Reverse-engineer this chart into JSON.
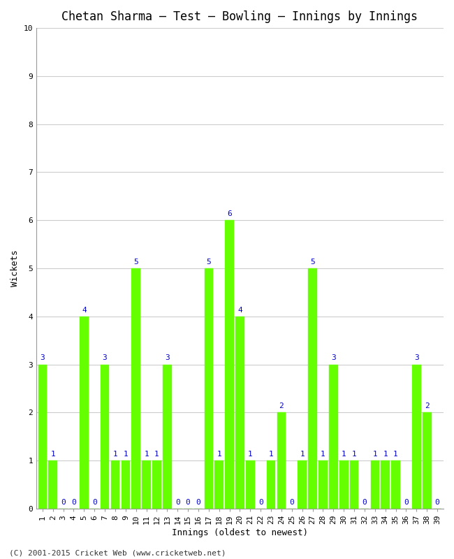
{
  "title": "Chetan Sharma – Test – Bowling – Innings by Innings",
  "xlabel": "Innings (oldest to newest)",
  "ylabel": "Wickets",
  "footer": "(C) 2001-2015 Cricket Web (www.cricketweb.net)",
  "ylim": [
    0,
    10
  ],
  "yticks": [
    0,
    1,
    2,
    3,
    4,
    5,
    6,
    7,
    8,
    9,
    10
  ],
  "bar_color": "#66ff00",
  "bar_edge_color": "#66ff00",
  "label_color": "#0000cc",
  "innings": [
    1,
    2,
    3,
    4,
    5,
    6,
    7,
    8,
    9,
    10,
    11,
    12,
    13,
    14,
    15,
    16,
    17,
    18,
    19,
    20,
    21,
    22,
    23,
    24,
    25,
    26,
    27,
    28,
    29,
    30,
    31,
    32,
    33,
    34,
    35,
    36,
    37,
    38,
    39
  ],
  "wickets": [
    3,
    1,
    0,
    0,
    4,
    0,
    3,
    1,
    1,
    5,
    1,
    1,
    3,
    0,
    0,
    0,
    5,
    1,
    6,
    4,
    1,
    0,
    1,
    2,
    0,
    1,
    5,
    1,
    3,
    1,
    1,
    0,
    1,
    1,
    1,
    0,
    3,
    2,
    0
  ],
  "background_color": "#ffffff",
  "grid_color": "#cccccc",
  "title_fontsize": 12,
  "label_fontsize": 9,
  "tick_fontsize": 8,
  "annot_fontsize": 8,
  "footer_fontsize": 8
}
